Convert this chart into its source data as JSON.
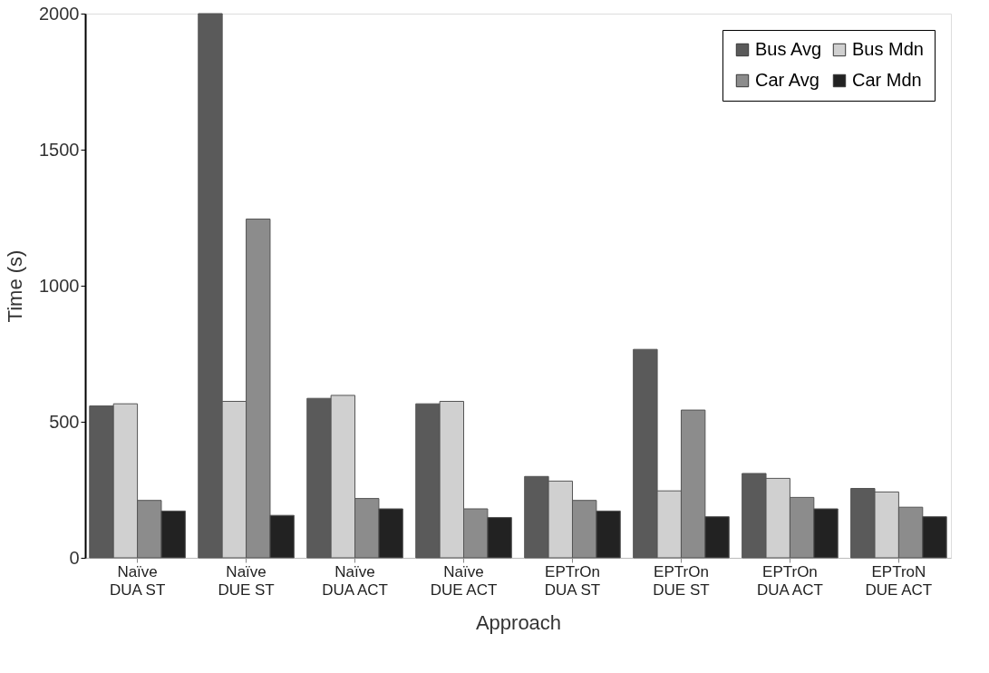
{
  "chart_data": {
    "type": "bar",
    "xlabel": "Approach",
    "ylabel": "Time (s)",
    "categories": [
      "Naïve DUA ST",
      "Naïve DUE ST",
      "Naïve DUA ACT",
      "Naïve DUE ACT",
      "EPTrOn DUA ST",
      "EPTrOn DUE ST",
      "EPTrOn DUA ACT",
      "EPTroN DUE ACT"
    ],
    "series": [
      {
        "name": "Bus Avg",
        "color": "#5a5a5a",
        "values": [
          558,
          2000,
          586,
          566,
          299,
          766,
          310,
          255
        ]
      },
      {
        "name": "Bus Mdn",
        "color": "#d0d0d0",
        "values": [
          566,
          575,
          597,
          575,
          282,
          246,
          292,
          242
        ]
      },
      {
        "name": "Car Avg",
        "color": "#8c8c8c",
        "values": [
          211,
          1245,
          218,
          180,
          211,
          543,
          222,
          186
        ]
      },
      {
        "name": "Car Mdn",
        "color": "#222222",
        "values": [
          172,
          156,
          180,
          148,
          172,
          151,
          180,
          151
        ]
      }
    ],
    "ylim": [
      0,
      2000
    ],
    "yticks": [
      0,
      500,
      1000,
      1500,
      2000
    ],
    "grid": false,
    "legend": "top right"
  }
}
